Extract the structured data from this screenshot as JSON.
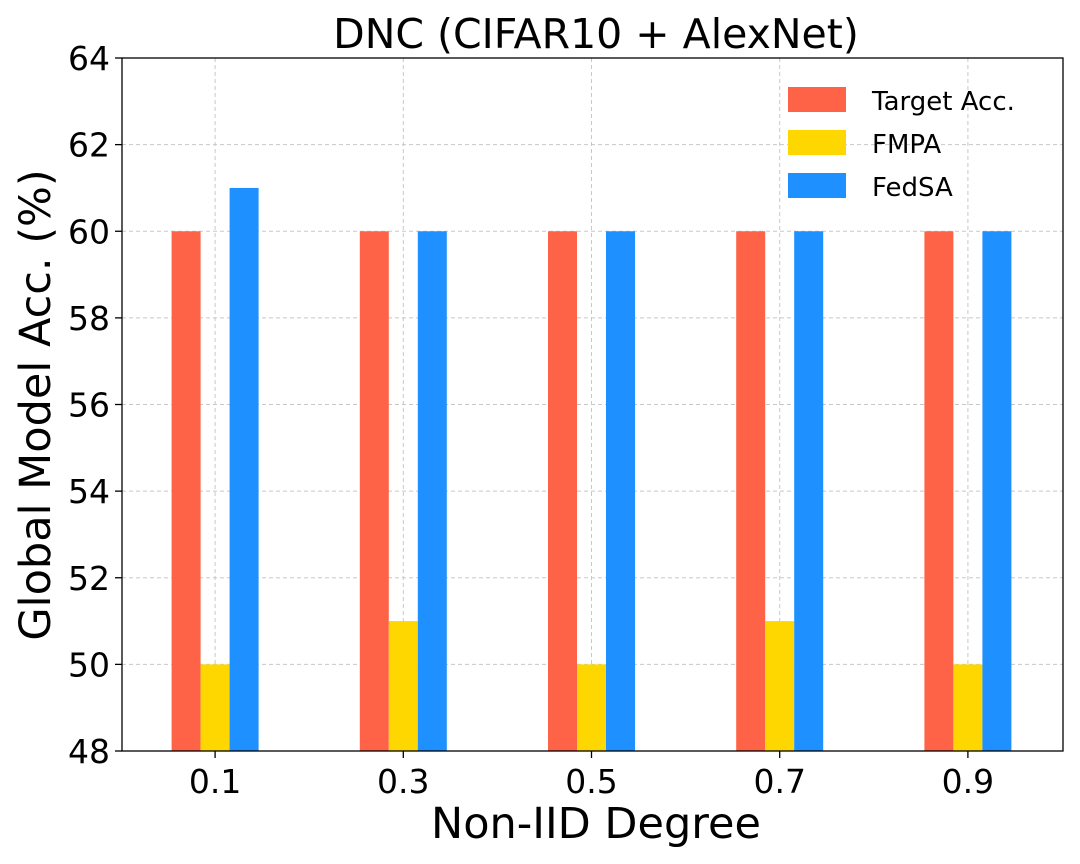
{
  "chart_data": {
    "type": "bar",
    "title": "DNC (CIFAR10 + AlexNet)",
    "xlabel": "Non-IID Degree",
    "ylabel": "Global Model Acc. (%)",
    "categories": [
      "0.1",
      "0.3",
      "0.5",
      "0.7",
      "0.9"
    ],
    "ylim": [
      48,
      64
    ],
    "yticks": [
      "48",
      "50",
      "52",
      "54",
      "56",
      "58",
      "60",
      "62",
      "64"
    ],
    "grid": true,
    "legend_position": "top-right",
    "series": [
      {
        "name": "Target Acc.",
        "color": "#ff6347",
        "values": [
          60,
          60,
          60,
          60,
          60
        ]
      },
      {
        "name": "FMPA",
        "color": "#ffd700",
        "values": [
          50,
          51,
          50,
          51,
          50
        ]
      },
      {
        "name": "FedSA",
        "color": "#1e90ff",
        "values": [
          61,
          60,
          60,
          60,
          60
        ]
      }
    ]
  }
}
